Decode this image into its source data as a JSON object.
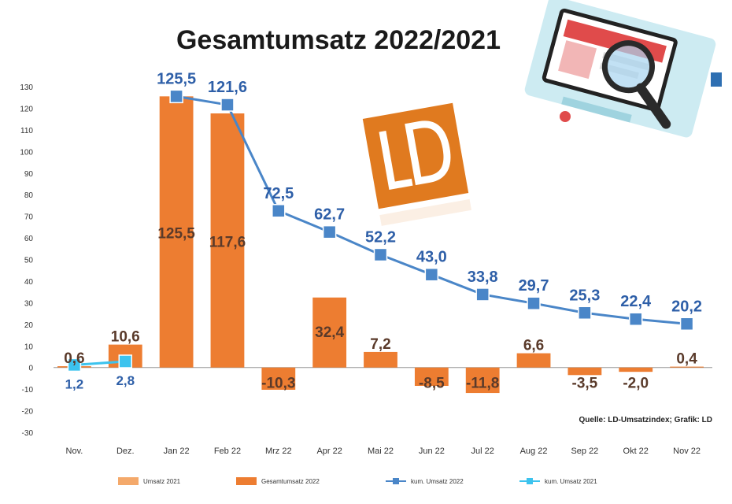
{
  "chart_data": {
    "type": "bar",
    "title": "Gesamtumsatz 2022/2021",
    "source": "Quelle: LD-Umsatzindex; Grafik: LD",
    "categories": [
      "Nov.",
      "Dez.",
      "Jan 22",
      "Feb 22",
      "Mrz 22",
      "Apr 22",
      "Mai 22",
      "Jun 22",
      "Jul 22",
      "Aug 22",
      "Sep 22",
      "Okt 22",
      "Nov 22"
    ],
    "ylim": [
      -30,
      130
    ],
    "yticks": [
      130,
      120,
      110,
      100,
      90,
      80,
      70,
      60,
      50,
      40,
      30,
      20,
      10,
      0,
      -10,
      -20,
      -30
    ],
    "grid": false,
    "legend_position": "bottom",
    "series": [
      {
        "name": "Umsatz 2021",
        "type": "bar",
        "color": "#f4a96b",
        "values": [
          null,
          null,
          null,
          null,
          null,
          null,
          null,
          null,
          null,
          null,
          null,
          null,
          null
        ]
      },
      {
        "name": "Gesamtumsatz 2022",
        "type": "bar",
        "color": "#ed7d31",
        "values": [
          0.6,
          10.6,
          125.5,
          117.6,
          -10.3,
          32.4,
          7.2,
          -8.5,
          -11.8,
          6.6,
          -3.5,
          -2.0,
          0.4
        ],
        "labels": [
          "0,6",
          "10,6",
          "125,5",
          "117,6",
          "-10,3",
          "32,4",
          "7,2",
          "-8,5",
          "-11,8",
          "6,6",
          "-3,5",
          "-2,0",
          "0,4"
        ]
      },
      {
        "name": "kum. Umsatz 2022",
        "type": "line",
        "color": "#4a86c8",
        "values": [
          null,
          null,
          125.5,
          121.6,
          72.5,
          62.7,
          52.2,
          43.0,
          33.8,
          29.7,
          25.3,
          22.4,
          20.2
        ],
        "labels": [
          "",
          "",
          "125,5",
          "121,6",
          "72,5",
          "62,7",
          "52,2",
          "43,0",
          "33,8",
          "29,7",
          "25,3",
          "22,4",
          "20,2"
        ]
      },
      {
        "name": "kum. Umsatz 2021",
        "type": "line",
        "color": "#3cc3ee",
        "values": [
          1.2,
          2.8,
          null,
          null,
          null,
          null,
          null,
          null,
          null,
          null,
          null,
          null,
          null
        ],
        "labels": [
          "1,2",
          "2,8",
          "",
          "",
          "",
          "",
          "",
          "",
          "",
          "",
          "",
          "",
          ""
        ]
      }
    ]
  },
  "logo": {
    "text": "LD",
    "color": "#e07a1f"
  },
  "illustration": {
    "icon": "magnifier-store-icon"
  }
}
